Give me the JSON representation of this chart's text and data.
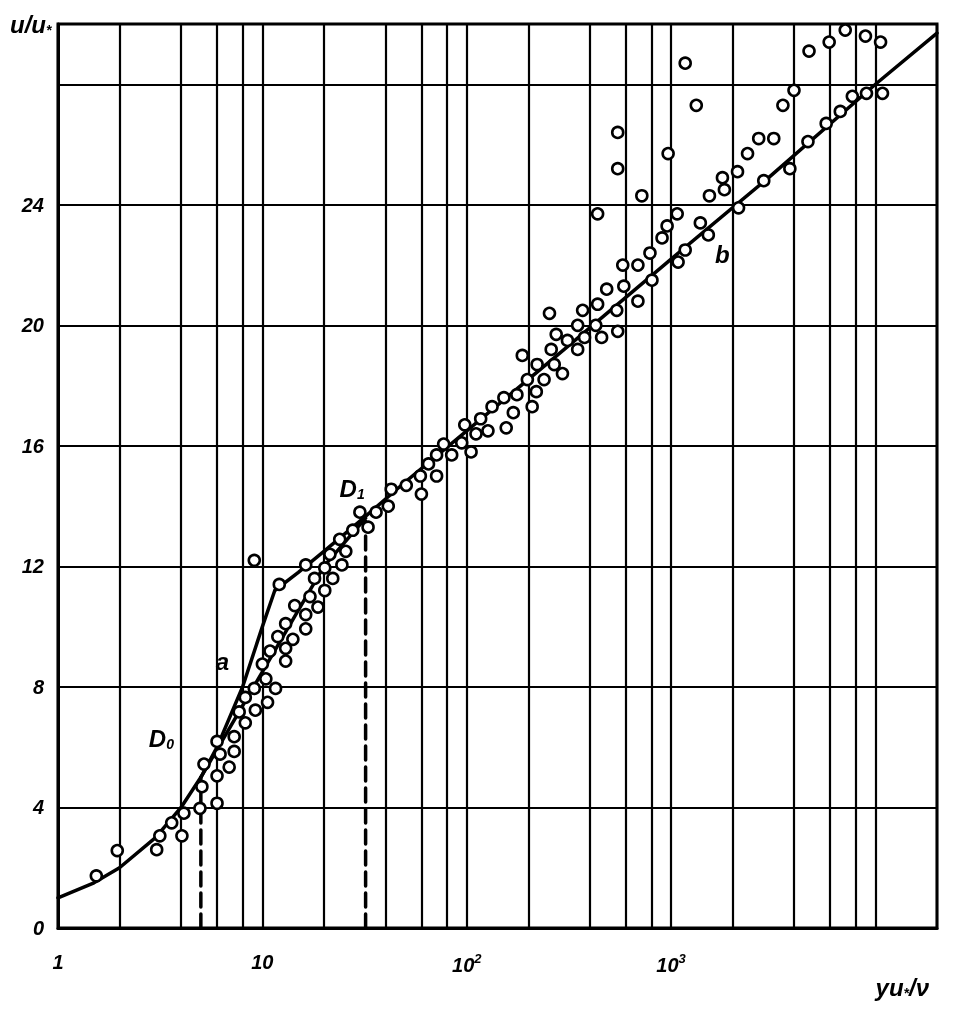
{
  "chart_data": {
    "type": "scatter",
    "xlabel": "yu$_{*}$/ν",
    "ylabel": "u/u$_{*}$",
    "log": "x",
    "grid": true,
    "xlim": [
      1,
      20000
    ],
    "ylim": [
      0,
      30
    ],
    "xticks": [
      1,
      {
        "value": 2,
        "label": null
      },
      {
        "value": 4,
        "label": null
      },
      {
        "value": 6,
        "label": null
      },
      {
        "value": 8,
        "label": null
      },
      10,
      {
        "value": 20,
        "label": null
      },
      {
        "value": 40,
        "label": null
      },
      {
        "value": 60,
        "label": null
      },
      {
        "value": 80,
        "label": null
      },
      {
        "value": 100,
        "label": "10$^{2}$"
      },
      {
        "value": 200,
        "label": null
      },
      {
        "value": 400,
        "label": null
      },
      {
        "value": 600,
        "label": null
      },
      {
        "value": 800,
        "label": null
      },
      {
        "value": 1000,
        "label": "10$^{3}$"
      },
      {
        "value": 2000,
        "label": null
      },
      {
        "value": 4000,
        "label": null
      },
      {
        "value": 6000,
        "label": null
      },
      {
        "value": 8000,
        "label": null
      },
      {
        "value": 10000,
        "label": null
      },
      {
        "value": 20000,
        "label": null
      }
    ],
    "yticks": [
      0,
      4,
      8,
      12,
      16,
      20,
      24,
      {
        "value": 28,
        "label": null
      }
    ],
    "annotations": [
      {
        "text": "D$_{0}$",
        "x": 5,
        "y": 5
      },
      {
        "text": "D$_{1}$",
        "x": 32,
        "y": 13.5
      },
      {
        "text": "a",
        "x": 8.3,
        "y": 8.3
      },
      {
        "text": "b",
        "x": 1500,
        "y": 23.2
      }
    ],
    "series": [
      {
        "type": "scatter",
        "marker": "circle",
        "color": "#000000",
        "x": [
          1.54,
          1.95,
          3.04,
          3.15,
          3.6,
          4.04,
          4.13,
          4.95,
          5.06,
          6.0,
          5.18,
          6.88,
          6.21,
          7.28,
          6.0,
          7.28,
          8.25,
          7.7,
          9.24,
          10.6,
          8.25,
          9.13,
          11.6,
          10.4,
          10.0,
          10.9,
          13.0,
          13.0,
          11.9,
          14.1,
          13.0,
          16.3,
          16.3,
          14.4,
          18.7,
          17.1,
          20.2,
          18.0,
          22.1,
          12.1,
          9.13,
          16.3,
          20.2,
          24.5,
          21.4,
          25.6,
          23.9,
          27.7,
          32.9,
          30.0,
          36.0,
          41.3,
          6.0,
          42.7,
          50.6,
          59.3,
          60.0,
          65.0,
          71.2,
          71.2,
          77.1,
          84.4,
          94.5,
          105,
          97.8,
          111,
          117,
          127,
          133,
          152,
          156,
          169,
          176,
          198,
          209,
          219,
          221,
          239,
          259,
          268,
          187,
          294,
          274,
          311,
          349,
          349,
          377,
          428,
          457,
          254,
          369,
          437,
          484,
          542,
          548,
          587,
          580,
          688,
          688,
          806,
          437,
          548,
          548,
          719,
          1172,
          1328,
          967,
          1071,
          956,
          903,
          788,
          1082,
          1172,
          1390,
          1521,
          2138,
          2840,
          3811,
          4673,
          1540,
          1823,
          1783,
          2113,
          2366,
          2683,
          3179,
          3524,
          3993,
          4730,
          5935,
          7112,
          8932,
          10590,
          5739,
          6728,
          7705,
          9036,
          10820
        ],
        "values": [
          1.73,
          2.57,
          2.6,
          3.06,
          3.49,
          3.06,
          3.81,
          3.97,
          4.69,
          5.05,
          5.44,
          5.34,
          5.77,
          5.86,
          6.19,
          6.35,
          6.81,
          7.17,
          7.23,
          7.49,
          7.65,
          7.95,
          7.95,
          8.27,
          8.76,
          9.19,
          8.86,
          9.28,
          9.67,
          9.58,
          10.1,
          9.93,
          10.4,
          10.7,
          10.65,
          11.0,
          11.2,
          11.6,
          11.6,
          11.4,
          12.2,
          12.05,
          11.95,
          12.05,
          12.4,
          12.5,
          12.9,
          13.2,
          13.3,
          13.8,
          13.8,
          14.0,
          4.14,
          14.56,
          14.69,
          15.0,
          14.4,
          15.4,
          15.0,
          15.7,
          16.06,
          15.7,
          16.1,
          15.8,
          16.7,
          16.4,
          16.9,
          16.5,
          17.3,
          17.6,
          16.6,
          17.1,
          17.7,
          18.2,
          17.3,
          17.8,
          18.7,
          18.2,
          19.2,
          18.7,
          19.0,
          18.4,
          19.7,
          19.5,
          19.2,
          20.0,
          19.6,
          20.0,
          19.6,
          20.4,
          20.5,
          20.7,
          21.2,
          20.5,
          19.8,
          21.3,
          22.0,
          20.8,
          22.0,
          21.5,
          23.7,
          26.4,
          25.2,
          24.3,
          28.7,
          27.3,
          25.7,
          23.7,
          23.3,
          22.9,
          22.4,
          22.1,
          22.5,
          23.4,
          23.0,
          23.9,
          24.8,
          25.2,
          26.1,
          24.3,
          24.5,
          24.9,
          25.1,
          25.7,
          26.2,
          26.2,
          27.3,
          27.8,
          29.1,
          29.4,
          29.8,
          29.6,
          29.4,
          26.7,
          27.1,
          27.6,
          27.7,
          27.7
        ]
      },
      {
        "type": "line",
        "marker": "none",
        "line_style": "solid",
        "color": "#000000",
        "x": [
          1,
          1.5,
          2,
          3,
          4,
          5,
          6,
          8,
          10,
          11.5,
          15,
          20,
          30,
          50,
          100,
          300,
          1000,
          3000,
          10000,
          20000
        ],
        "values": [
          1,
          1.5,
          2,
          3,
          4,
          5,
          6,
          8,
          10,
          11.2,
          11.8,
          12.5,
          13.5,
          14.8,
          16.5,
          19.2,
          22.2,
          24.9,
          28.0,
          29.7
        ]
      },
      {
        "type": "line",
        "marker": "none",
        "line_style": "solid",
        "color": "#000000",
        "x": [
          5,
          10,
          20,
          32
        ],
        "values": [
          5,
          8.5,
          12,
          13.6
        ]
      },
      {
        "type": "line",
        "marker": "none",
        "line_style": "dashed",
        "color": "#000000",
        "x": [
          5,
          5
        ],
        "values": [
          0,
          5
        ]
      },
      {
        "type": "line",
        "marker": "none",
        "line_style": "dashed",
        "color": "#000000",
        "x": [
          32,
          32
        ],
        "values": [
          0,
          13.5
        ]
      }
    ]
  }
}
